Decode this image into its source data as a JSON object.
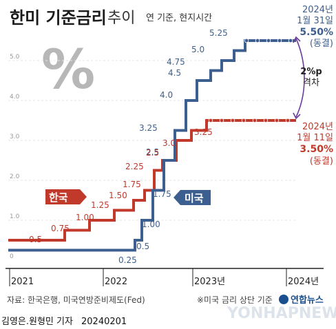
{
  "header": {
    "title": "한미 기준금리",
    "subtitle": "추이",
    "note": "연 기준, 현지시간"
  },
  "chart_data": {
    "type": "line",
    "title": "한미 기준금리 추이",
    "ylim": [
      0,
      5.5
    ],
    "y_ticks": [
      0,
      1.0,
      2.0,
      3.0,
      4.0,
      5.0
    ],
    "y_tick_labels": [
      "0",
      "1.0",
      "2.0",
      "3.0",
      "4.0",
      "5.0"
    ],
    "x_ticks": [
      "2021",
      "2022",
      "2023년",
      "2024년"
    ],
    "series": [
      {
        "name": "미국",
        "color": "#3d5f8f",
        "values": [
          0.25,
          0.5,
          1.0,
          1.75,
          2.5,
          3.25,
          4.0,
          4.5,
          4.75,
          5.0,
          5.25,
          5.5,
          5.5
        ],
        "labels": [
          "0.25",
          "0.5",
          "1.00",
          "1.75",
          "2.5",
          "3.25",
          "4.0",
          "4.5",
          "4.75",
          "5.0",
          "5.25",
          "",
          ""
        ]
      },
      {
        "name": "한국",
        "color": "#c0392b",
        "values": [
          0.5,
          0.75,
          1.0,
          1.25,
          1.5,
          1.75,
          2.25,
          2.5,
          3.0,
          3.25,
          3.5,
          3.5
        ],
        "labels": [
          "0.5",
          "0.75",
          "1.00",
          "1.25",
          "1.50",
          "1.75",
          "2.25",
          "2.5",
          "3.0",
          "3.25",
          "",
          ""
        ]
      }
    ],
    "annotations": {
      "us_date": "2024년",
      "us_date2": "1월 31일",
      "us_value": "5.50%",
      "us_status": "(동결)",
      "kr_date": "2024년",
      "kr_date2": "1월 11일",
      "kr_value": "3.50%",
      "kr_status": "(동결)",
      "gap_value": "2%p",
      "gap_label": "격차"
    }
  },
  "footer": {
    "source": "자료: 한국은행, 미국연방준비제도(Fed)",
    "note": "※미국 금리 상단 기준",
    "credit": "김영은.원형민 기자",
    "date": "20240201",
    "agency": "연합뉴스",
    "watermark": "YONHAPNEWS"
  },
  "colors": {
    "us": "#3d5f8f",
    "kr": "#c0392b",
    "arrow": "#6a3d9a"
  }
}
